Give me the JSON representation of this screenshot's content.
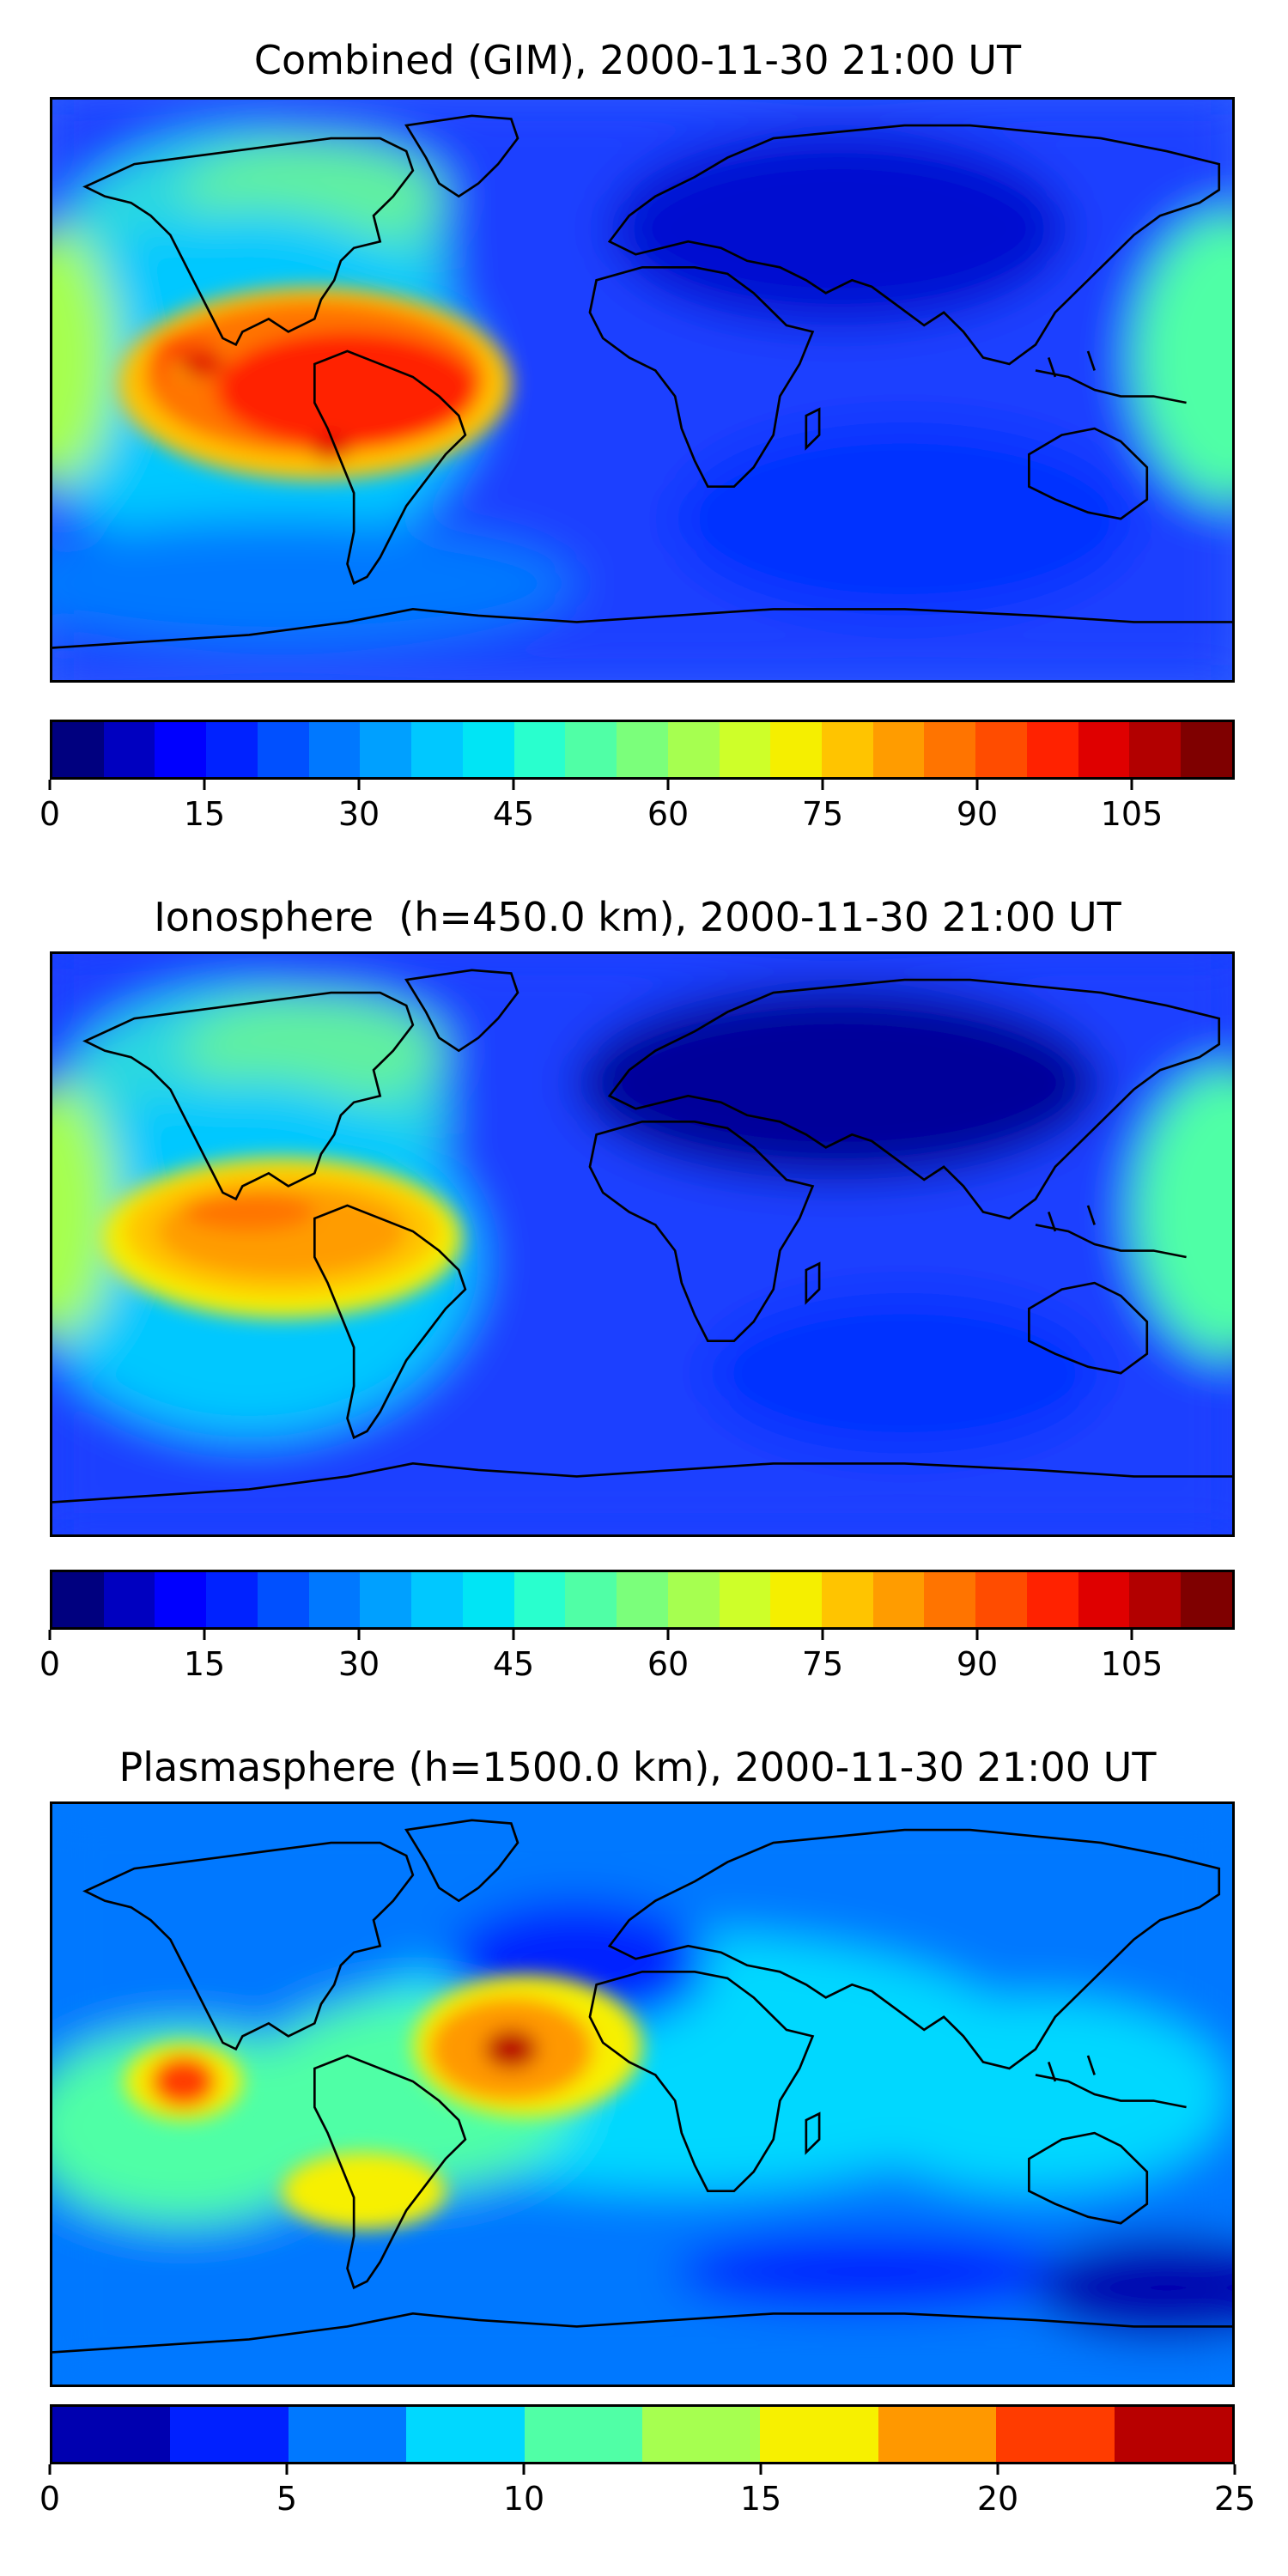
{
  "panels": [
    {
      "title": "Combined (GIM), 2000-11-30 21:00 UT",
      "colorbar": {
        "min": 0,
        "max": 115,
        "levels": 23,
        "tick_values": [
          0,
          15,
          30,
          45,
          60,
          75,
          90,
          105
        ],
        "tick_labels": [
          "0",
          "15",
          "30",
          "45",
          "60",
          "75",
          "90",
          "105"
        ]
      }
    },
    {
      "title": "Ionosphere  (h=450.0 km), 2000-11-30 21:00 UT",
      "colorbar": {
        "min": 0,
        "max": 115,
        "levels": 23,
        "tick_values": [
          0,
          15,
          30,
          45,
          60,
          75,
          90,
          105
        ],
        "tick_labels": [
          "0",
          "15",
          "30",
          "45",
          "60",
          "75",
          "90",
          "105"
        ]
      }
    },
    {
      "title": "Plasmasphere (h=1500.0 km), 2000-11-30 21:00 UT",
      "colorbar": {
        "min": 0,
        "max": 25,
        "levels": 10,
        "tick_values": [
          0,
          5,
          10,
          15,
          20,
          25
        ],
        "tick_labels": [
          "0",
          "5",
          "10",
          "15",
          "20",
          "25"
        ]
      }
    }
  ],
  "colormap": "jet",
  "jet_colors": {
    "c23": [
      "#00007f",
      "#0000c0",
      "#0000ff",
      "#0022ff",
      "#0050ff",
      "#0078ff",
      "#00a0ff",
      "#00c8ff",
      "#00e5f5",
      "#29ffce",
      "#50ffa6",
      "#7bff7b",
      "#a6ff50",
      "#ceff29",
      "#f5ef00",
      "#ffc400",
      "#ff9c00",
      "#ff7400",
      "#ff4c00",
      "#ff2200",
      "#df0000",
      "#b20000",
      "#7f0000"
    ],
    "c10": [
      "#0000b0",
      "#0020ff",
      "#0078ff",
      "#00d8ff",
      "#50ffa6",
      "#a6ff50",
      "#f7f000",
      "#ff9800",
      "#ff3c00",
      "#b80000"
    ]
  }
}
